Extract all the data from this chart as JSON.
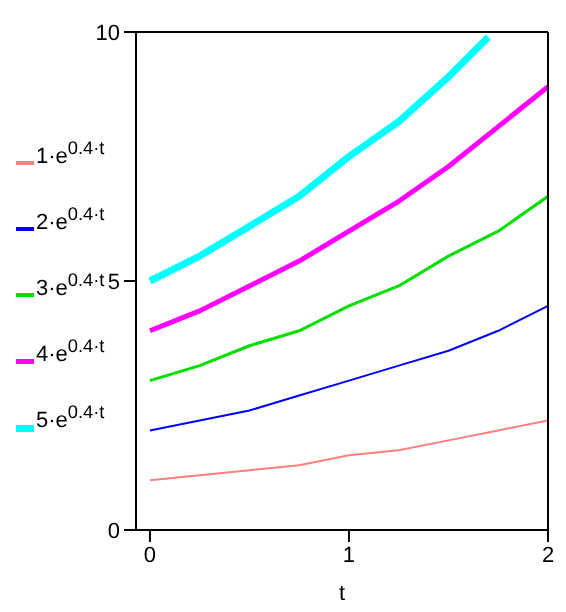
{
  "chart_data": {
    "type": "line",
    "xlabel": "t",
    "x": [
      0,
      0.25,
      0.5,
      0.75,
      1,
      1.25,
      1.5,
      1.75,
      2
    ],
    "xlim": [
      -0.07,
      2
    ],
    "xticks": [
      0,
      1,
      2
    ],
    "ylim": [
      0,
      10
    ],
    "yticks": [
      0,
      5,
      10
    ],
    "legend": "left",
    "marker": "none",
    "line_style": "solid",
    "series": [
      {
        "name": "1·e$^{0.4·t}$",
        "color": "#ff7f7f",
        "values": [
          1.0,
          1.1,
          1.2,
          1.3,
          1.5,
          1.6,
          1.8,
          2.0,
          2.2
        ]
      },
      {
        "name": "2·e$^{0.4·t}$",
        "color": "#0000ff",
        "values": [
          2.0,
          2.2,
          2.4,
          2.7,
          3.0,
          3.3,
          3.6,
          4.0,
          4.5
        ]
      },
      {
        "name": "3·e$^{0.4·t}$",
        "color": "#00e000",
        "values": [
          3.0,
          3.3,
          3.7,
          4.0,
          4.5,
          4.9,
          5.5,
          6.0,
          6.7
        ]
      },
      {
        "name": "4·e$^{0.4·t}$",
        "color": "#ff00ff",
        "values": [
          4.0,
          4.4,
          4.9,
          5.4,
          6.0,
          6.6,
          7.3,
          8.1,
          8.9
        ]
      },
      {
        "name": "5·e$^{0.4·t}$",
        "color": "#00ffff",
        "x": [
          0,
          0.25,
          0.5,
          0.75,
          1,
          1.25,
          1.5,
          1.7
        ],
        "values": [
          5.0,
          5.5,
          6.1,
          6.7,
          7.5,
          8.2,
          9.1,
          9.9
        ]
      }
    ]
  }
}
